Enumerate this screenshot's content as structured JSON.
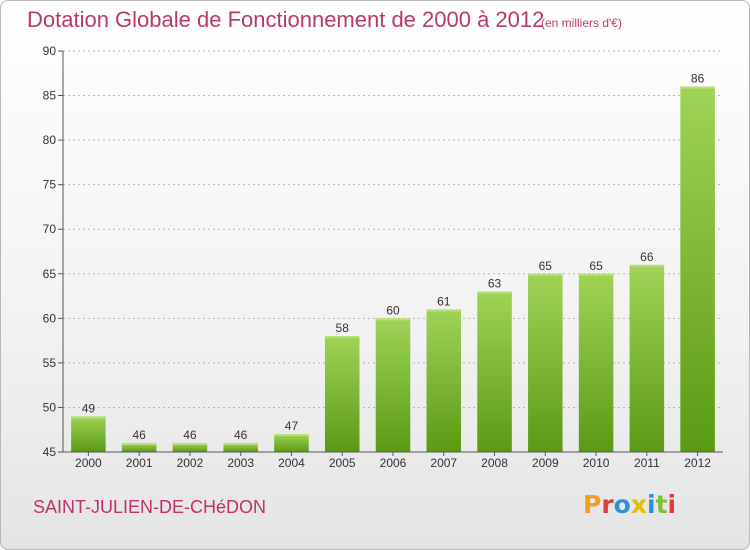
{
  "header": {
    "title": "Dotation Globale de Fonctionnement de 2000 à 2012",
    "subtitle": "(en milliers d'€)"
  },
  "footer": {
    "commune": "SAINT-JULIEN-DE-CHéDON",
    "logo_text": "Proxiti",
    "logo_colors": [
      "#f0a020",
      "#e03a3a",
      "#2f8fd8",
      "#e0c000",
      "#2f8fd8",
      "#7cc040",
      "#e03a3a"
    ]
  },
  "colors": {
    "title": "#b83a6a",
    "bar_top": "#9fd457",
    "bar_bottom": "#5a9a14",
    "grid": "#b5b5b5",
    "axis": "#555555",
    "text": "#333333"
  },
  "chart_data": {
    "type": "bar",
    "title": "Dotation Globale de Fonctionnement de 2000 à 2012",
    "subtitle": "(en milliers d'€)",
    "categories": [
      "2000",
      "2001",
      "2002",
      "2003",
      "2004",
      "2005",
      "2006",
      "2007",
      "2008",
      "2009",
      "2010",
      "2011",
      "2012"
    ],
    "values": [
      49,
      46,
      46,
      46,
      47,
      58,
      60,
      61,
      63,
      65,
      65,
      66,
      86
    ],
    "xlabel": "",
    "ylabel": "",
    "ylim": [
      45,
      90
    ],
    "yticks": [
      45,
      50,
      55,
      60,
      65,
      70,
      75,
      80,
      85,
      90
    ],
    "grid": true,
    "legend": "none"
  }
}
